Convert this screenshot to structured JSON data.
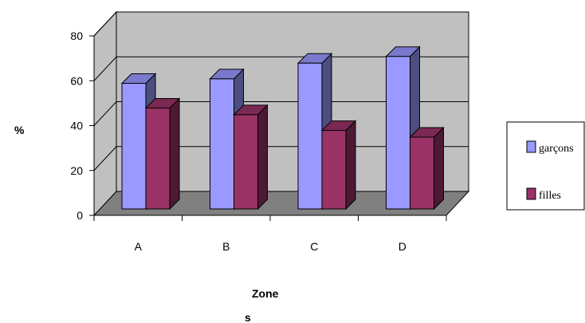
{
  "chart_data": {
    "type": "bar",
    "categories": [
      "A",
      "B",
      "C",
      "D"
    ],
    "series": [
      {
        "name": "garçons",
        "values": [
          56,
          58,
          65,
          68
        ],
        "color": "#9999ff"
      },
      {
        "name": "filles",
        "values": [
          45,
          42,
          35,
          32
        ],
        "color": "#993366"
      }
    ],
    "ylabel": "%",
    "xlabel": "Zones",
    "ylim": [
      0,
      80
    ],
    "yticks": [
      0,
      20,
      40,
      60,
      80
    ],
    "grid": true,
    "legend_position": "right",
    "wall_color": "#c0c0c0",
    "floor_color": "#808080"
  }
}
